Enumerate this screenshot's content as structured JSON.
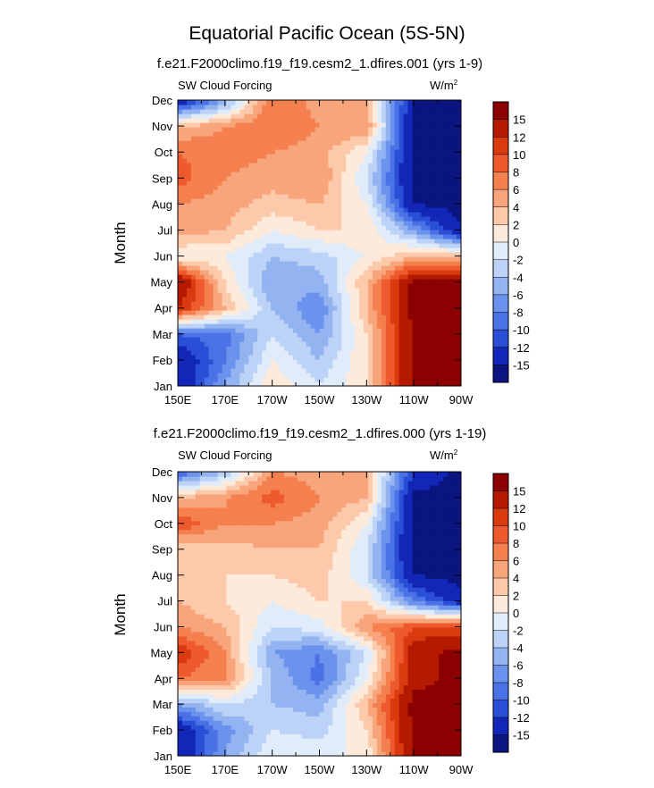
{
  "figure": {
    "title": "Equatorial Pacific Ocean (5S-5N)"
  },
  "panels": [
    {
      "subtitle": "f.e21.F2000climo.f19_f19.cesm2_1.dfires.001 (yrs 1-9)",
      "left_label": "SW Cloud Forcing",
      "units_label": "W/m",
      "units_sup": "2"
    },
    {
      "subtitle": "f.e21.F2000climo.f19_f19.cesm2_1.dfires.000 (yrs 1-19)",
      "left_label": "SW Cloud Forcing",
      "units_label": "W/m",
      "units_sup": "2"
    }
  ],
  "colorbar": {
    "labels": [
      "15",
      "12",
      "10",
      "8",
      "6",
      "4",
      "2",
      "0",
      "-2",
      "-4",
      "-6",
      "-8",
      "-10",
      "-12",
      "-15"
    ],
    "colors": [
      "#8b0000",
      "#b31a00",
      "#d93a0e",
      "#ee5a2d",
      "#f5804f",
      "#f9a57c",
      "#fcc9ab",
      "#feeadb",
      "#e0ecfa",
      "#bdd2f7",
      "#93b3f1",
      "#6b92ec",
      "#4a72e6",
      "#2a4fd6",
      "#1226b8",
      "#0a1580"
    ]
  },
  "chart_data": [
    {
      "type": "heatmap",
      "title": "f.e21.F2000climo.f19_f19.cesm2_1.dfires.001 (yrs 1-9)",
      "left_title": "SW Cloud Forcing",
      "units": "W/m2",
      "ylabel": "Month",
      "xlabel": "",
      "x": [
        "150E",
        "170E",
        "170W",
        "150W",
        "130W",
        "110W",
        "90W"
      ],
      "y": [
        "Jan",
        "Feb",
        "Mar",
        "Apr",
        "May",
        "Jun",
        "Jul",
        "Aug",
        "Sep",
        "Oct",
        "Nov",
        "Dec"
      ],
      "levels": [
        -15,
        -12,
        -10,
        -8,
        -6,
        -4,
        -2,
        0,
        2,
        4,
        6,
        8,
        10,
        12,
        15
      ],
      "values": [
        [
          -15,
          -6,
          2,
          -2,
          2,
          16,
          16
        ],
        [
          -15,
          -8,
          0,
          -4,
          2,
          16,
          16
        ],
        [
          -10,
          -9,
          -2,
          -6,
          2,
          16,
          16
        ],
        [
          12,
          4,
          -4,
          -8,
          4,
          16,
          16
        ],
        [
          16,
          2,
          -6,
          -5,
          4,
          16,
          16
        ],
        [
          0,
          0,
          -4,
          -3,
          0,
          4,
          4
        ],
        [
          5,
          4,
          0,
          2,
          2,
          -6,
          -15
        ],
        [
          6,
          5,
          3,
          4,
          0,
          -15,
          -16
        ],
        [
          9,
          6,
          5,
          6,
          -2,
          -16,
          -16
        ],
        [
          8,
          7,
          6,
          5,
          0,
          -16,
          -16
        ],
        [
          4,
          6,
          8,
          6,
          6,
          -16,
          -16
        ],
        [
          -15,
          -6,
          8,
          5,
          4,
          -15,
          -16
        ]
      ]
    },
    {
      "type": "heatmap",
      "title": "f.e21.F2000climo.f19_f19.cesm2_1.dfires.000 (yrs 1-19)",
      "left_title": "SW Cloud Forcing",
      "units": "W/m2",
      "ylabel": "Month",
      "xlabel": "",
      "x": [
        "150E",
        "170E",
        "170W",
        "150W",
        "130W",
        "110W",
        "90W"
      ],
      "y": [
        "Jan",
        "Feb",
        "Mar",
        "Apr",
        "May",
        "Jun",
        "Jul",
        "Aug",
        "Sep",
        "Oct",
        "Nov",
        "Dec"
      ],
      "levels": [
        -15,
        -12,
        -10,
        -8,
        -6,
        -4,
        -2,
        0,
        2,
        4,
        6,
        8,
        10,
        12,
        15
      ],
      "values": [
        [
          -15,
          -6,
          0,
          0,
          0,
          16,
          16
        ],
        [
          -15,
          -7,
          -2,
          -3,
          2,
          16,
          16
        ],
        [
          -6,
          -2,
          -4,
          -5,
          4,
          16,
          16
        ],
        [
          8,
          6,
          -4,
          -9,
          0,
          14,
          16
        ],
        [
          12,
          6,
          -6,
          -8,
          -2,
          14,
          16
        ],
        [
          6,
          4,
          -2,
          -1,
          6,
          10,
          10
        ],
        [
          4,
          2,
          0,
          2,
          2,
          -8,
          -14
        ],
        [
          3,
          2,
          2,
          3,
          -2,
          -15,
          -16
        ],
        [
          2,
          3,
          4,
          4,
          -2,
          -16,
          -16
        ],
        [
          10,
          6,
          6,
          5,
          0,
          -16,
          -16
        ],
        [
          4,
          6,
          9,
          6,
          4,
          -16,
          -16
        ],
        [
          -10,
          -4,
          6,
          5,
          4,
          -12,
          -16
        ]
      ]
    }
  ]
}
